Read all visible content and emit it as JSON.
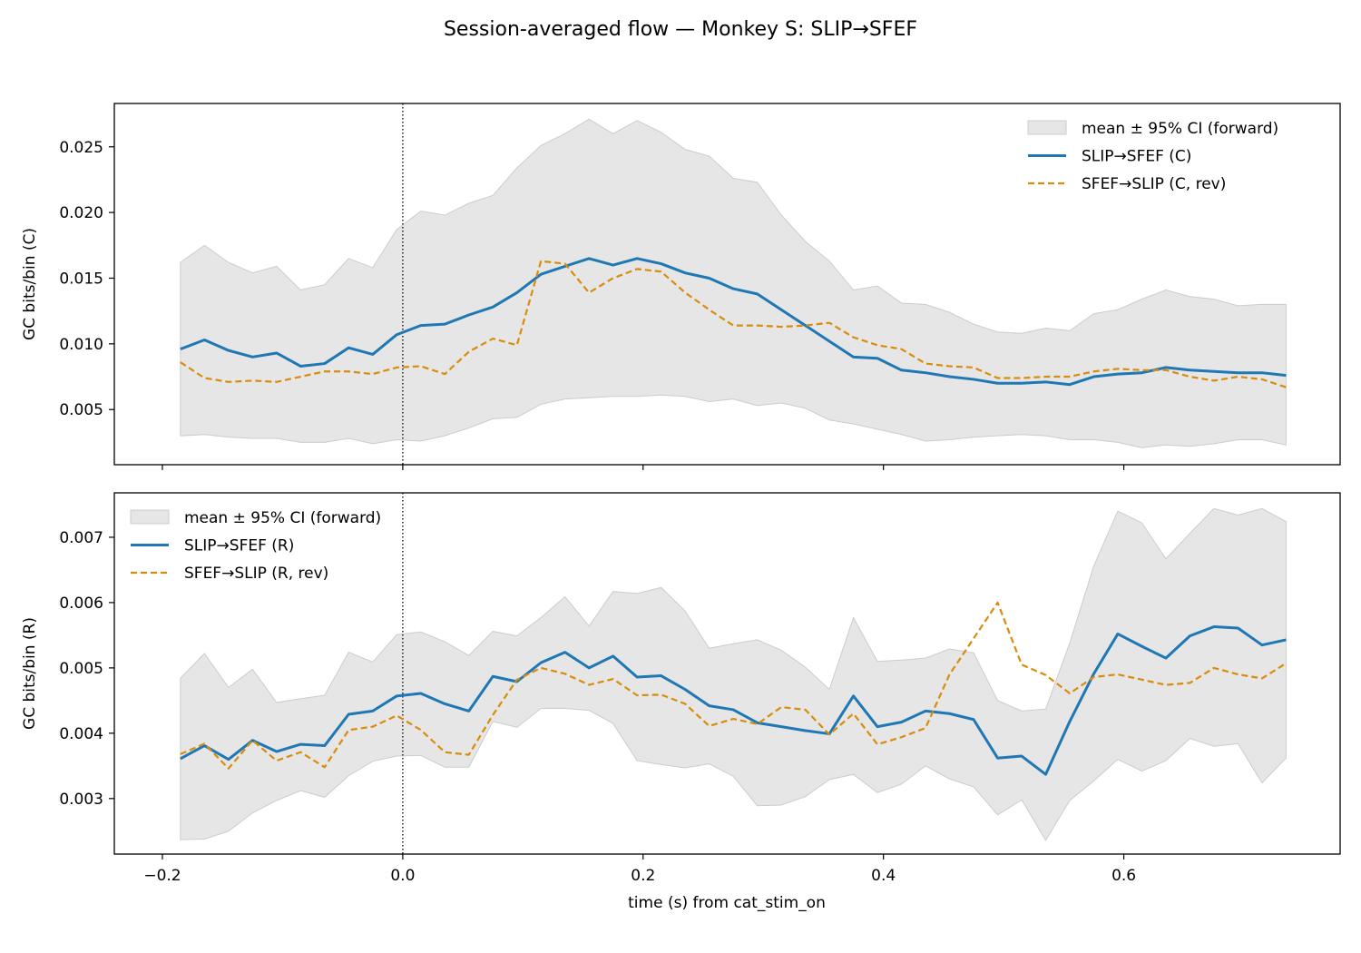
{
  "title": "Session-averaged flow — Monkey S: SLIP→SFEF",
  "xlabel": "time (s) from cat_stim_on",
  "colors": {
    "forward": "#1f77b4",
    "reverse": "#d98c0b",
    "ci": "#e6e6e6",
    "ci_edge": "#cccccc"
  },
  "chart_data": [
    {
      "type": "line",
      "ylabel": "GC bits/bin (C)",
      "xlim": [
        -0.24,
        0.78
      ],
      "ylim": [
        0.0008,
        0.0283
      ],
      "xticks": [
        -0.2,
        0.0,
        0.2,
        0.4,
        0.6
      ],
      "xtick_labels": [],
      "yticks": [
        0.005,
        0.01,
        0.015,
        0.02,
        0.025
      ],
      "ytick_labels": [
        "0.005",
        "0.010",
        "0.015",
        "0.020",
        "0.025"
      ],
      "vline_x": 0.0,
      "legend_position": "upper right",
      "legend": [
        "mean ± 95% CI (forward)",
        "SLIP→SFEF (C)",
        "SFEF→SLIP (C, rev)"
      ],
      "x": [
        -0.185,
        -0.165,
        -0.145,
        -0.125,
        -0.105,
        -0.085,
        -0.065,
        -0.045,
        -0.025,
        -0.005,
        0.015,
        0.035,
        0.055,
        0.075,
        0.095,
        0.115,
        0.135,
        0.155,
        0.175,
        0.195,
        0.215,
        0.235,
        0.255,
        0.275,
        0.295,
        0.315,
        0.335,
        0.355,
        0.375,
        0.395,
        0.415,
        0.435,
        0.455,
        0.475,
        0.495,
        0.515,
        0.535,
        0.555,
        0.575,
        0.595,
        0.615,
        0.635,
        0.655,
        0.675,
        0.695,
        0.715,
        0.735
      ],
      "ci_upper": [
        0.0162,
        0.0175,
        0.0162,
        0.0154,
        0.0159,
        0.0141,
        0.0145,
        0.0165,
        0.0158,
        0.0187,
        0.0201,
        0.0198,
        0.0207,
        0.0213,
        0.0234,
        0.0251,
        0.026,
        0.0271,
        0.026,
        0.027,
        0.0261,
        0.0248,
        0.0243,
        0.0226,
        0.0223,
        0.0198,
        0.0178,
        0.0163,
        0.0141,
        0.0144,
        0.0131,
        0.013,
        0.0124,
        0.0115,
        0.0109,
        0.0108,
        0.0112,
        0.011,
        0.0123,
        0.0126,
        0.0134,
        0.0141,
        0.0136,
        0.0134,
        0.0129,
        0.013,
        0.013
      ],
      "ci_lower": [
        0.003,
        0.0031,
        0.0029,
        0.0028,
        0.0028,
        0.0025,
        0.0025,
        0.0028,
        0.0024,
        0.0027,
        0.0026,
        0.003,
        0.0036,
        0.0043,
        0.0044,
        0.0054,
        0.0058,
        0.0059,
        0.006,
        0.006,
        0.0061,
        0.006,
        0.0056,
        0.0058,
        0.0053,
        0.0055,
        0.0051,
        0.0042,
        0.0039,
        0.0035,
        0.0031,
        0.0026,
        0.0027,
        0.0029,
        0.003,
        0.0031,
        0.003,
        0.0027,
        0.0027,
        0.0025,
        0.0021,
        0.0023,
        0.0022,
        0.0024,
        0.0027,
        0.0027,
        0.0023
      ],
      "series": [
        {
          "name": "SLIP→SFEF (C)",
          "style": "solid",
          "values": [
            0.0096,
            0.0103,
            0.0095,
            0.009,
            0.0093,
            0.0083,
            0.0085,
            0.0097,
            0.0092,
            0.0107,
            0.0114,
            0.0115,
            0.0122,
            0.0128,
            0.0139,
            0.0153,
            0.0159,
            0.0165,
            0.016,
            0.0165,
            0.0161,
            0.0154,
            0.015,
            0.0142,
            0.0138,
            0.0126,
            0.0114,
            0.0102,
            0.009,
            0.0089,
            0.008,
            0.0078,
            0.0075,
            0.0073,
            0.007,
            0.007,
            0.0071,
            0.0069,
            0.0075,
            0.0077,
            0.0078,
            0.0082,
            0.008,
            0.0079,
            0.0078,
            0.0078,
            0.0076
          ]
        },
        {
          "name": "SFEF→SLIP (C, rev)",
          "style": "dashed",
          "values": [
            0.0086,
            0.0074,
            0.0071,
            0.0072,
            0.0071,
            0.0075,
            0.0079,
            0.0079,
            0.0077,
            0.0082,
            0.0083,
            0.0077,
            0.0094,
            0.0104,
            0.0099,
            0.0163,
            0.0161,
            0.0139,
            0.015,
            0.0157,
            0.0155,
            0.0139,
            0.0126,
            0.0114,
            0.0114,
            0.0113,
            0.0114,
            0.0116,
            0.0105,
            0.0099,
            0.0096,
            0.0085,
            0.0083,
            0.0082,
            0.0074,
            0.0074,
            0.0075,
            0.0075,
            0.0079,
            0.0081,
            0.008,
            0.008,
            0.0075,
            0.0072,
            0.0075,
            0.0073,
            0.0067
          ]
        }
      ]
    },
    {
      "type": "line",
      "ylabel": "GC bits/bin (R)",
      "xlim": [
        -0.24,
        0.78
      ],
      "ylim": [
        0.00215,
        0.00768
      ],
      "xticks": [
        -0.2,
        0.0,
        0.2,
        0.4,
        0.6
      ],
      "xtick_labels": [
        "−0.2",
        "0.0",
        "0.2",
        "0.4",
        "0.6"
      ],
      "yticks": [
        0.003,
        0.004,
        0.005,
        0.006,
        0.007
      ],
      "ytick_labels": [
        "0.003",
        "0.004",
        "0.005",
        "0.006",
        "0.007"
      ],
      "vline_x": 0.0,
      "legend_position": "upper left",
      "legend": [
        "mean ± 95% CI (forward)",
        "SLIP→SFEF (R)",
        "SFEF→SLIP (R, rev)"
      ],
      "x": [
        -0.185,
        -0.165,
        -0.145,
        -0.125,
        -0.105,
        -0.085,
        -0.065,
        -0.045,
        -0.025,
        -0.005,
        0.015,
        0.035,
        0.055,
        0.075,
        0.095,
        0.115,
        0.135,
        0.155,
        0.175,
        0.195,
        0.215,
        0.235,
        0.255,
        0.275,
        0.295,
        0.315,
        0.335,
        0.355,
        0.375,
        0.395,
        0.415,
        0.435,
        0.455,
        0.475,
        0.495,
        0.515,
        0.535,
        0.555,
        0.575,
        0.595,
        0.615,
        0.635,
        0.655,
        0.675,
        0.695,
        0.715,
        0.735
      ],
      "ci_upper": [
        0.00484,
        0.00522,
        0.0047,
        0.00498,
        0.00447,
        0.00453,
        0.00458,
        0.00524,
        0.00509,
        0.00551,
        0.00555,
        0.0054,
        0.00519,
        0.00556,
        0.00549,
        0.00577,
        0.00609,
        0.00564,
        0.00617,
        0.00614,
        0.00623,
        0.00587,
        0.0053,
        0.00537,
        0.00543,
        0.00527,
        0.00501,
        0.00467,
        0.00577,
        0.0051,
        0.00512,
        0.00515,
        0.00529,
        0.00523,
        0.0045,
        0.00434,
        0.00437,
        0.00538,
        0.00656,
        0.0074,
        0.00722,
        0.00667,
        0.00706,
        0.00744,
        0.00734,
        0.00744,
        0.00724
      ],
      "ci_lower": [
        0.00237,
        0.00238,
        0.0025,
        0.00278,
        0.00297,
        0.00312,
        0.00302,
        0.00335,
        0.00357,
        0.00365,
        0.00366,
        0.00348,
        0.00348,
        0.00418,
        0.00409,
        0.00438,
        0.00438,
        0.00435,
        0.00415,
        0.00358,
        0.00352,
        0.00347,
        0.00353,
        0.00334,
        0.00289,
        0.0029,
        0.00303,
        0.00329,
        0.00337,
        0.00309,
        0.00322,
        0.0035,
        0.0033,
        0.00318,
        0.00275,
        0.00298,
        0.00236,
        0.00297,
        0.00327,
        0.0036,
        0.00342,
        0.00358,
        0.00392,
        0.0038,
        0.00384,
        0.00324,
        0.00362
      ],
      "series": [
        {
          "name": "SLIP→SFEF (R)",
          "style": "solid",
          "values": [
            0.00361,
            0.00381,
            0.0036,
            0.00389,
            0.00372,
            0.00383,
            0.00381,
            0.00429,
            0.00434,
            0.00457,
            0.00461,
            0.00445,
            0.00434,
            0.00487,
            0.00479,
            0.00508,
            0.00524,
            0.005,
            0.00518,
            0.00486,
            0.00488,
            0.00467,
            0.00442,
            0.00436,
            0.00416,
            0.0041,
            0.00404,
            0.00399,
            0.00457,
            0.0041,
            0.00417,
            0.00434,
            0.0043,
            0.00421,
            0.00362,
            0.00365,
            0.00337,
            0.00418,
            0.00491,
            0.00552,
            0.00533,
            0.00515,
            0.00549,
            0.00563,
            0.00561,
            0.00535,
            0.00543
          ]
        },
        {
          "name": "SFEF→SLIP (R, rev)",
          "style": "dashed",
          "values": [
            0.00368,
            0.00384,
            0.00346,
            0.00389,
            0.00358,
            0.00371,
            0.00348,
            0.00405,
            0.0041,
            0.00427,
            0.00405,
            0.00371,
            0.00367,
            0.00428,
            0.00482,
            0.005,
            0.00491,
            0.00474,
            0.00483,
            0.00458,
            0.00459,
            0.00445,
            0.00411,
            0.00422,
            0.00414,
            0.0044,
            0.00436,
            0.00398,
            0.0043,
            0.00383,
            0.00394,
            0.00408,
            0.0049,
            0.00545,
            0.006,
            0.00505,
            0.00489,
            0.00461,
            0.00486,
            0.0049,
            0.00482,
            0.00474,
            0.00477,
            0.005,
            0.0049,
            0.00484,
            0.00507
          ]
        }
      ]
    }
  ]
}
